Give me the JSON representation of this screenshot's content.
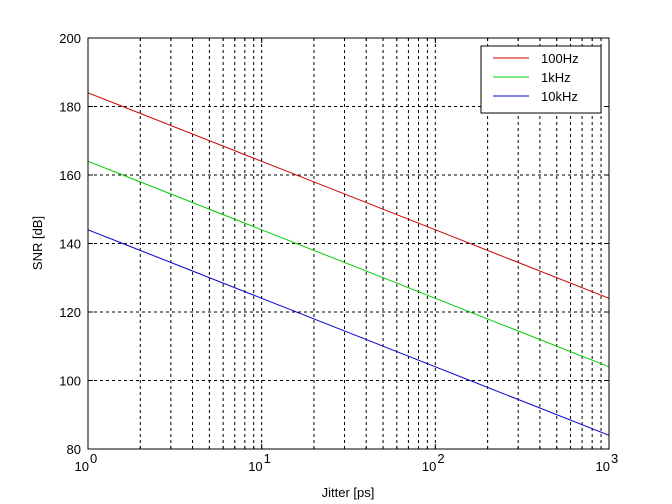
{
  "chart_data": {
    "type": "line",
    "title": "",
    "xlabel": "Jitter [ps]",
    "ylabel": "SNR [dB]",
    "xscale": "log",
    "xlim": [
      1,
      1000
    ],
    "ylim": [
      80,
      200
    ],
    "grid": true,
    "legend_position": "top-right",
    "x_ticks": [
      {
        "base": "10",
        "exp": "0"
      },
      {
        "base": "10",
        "exp": "1"
      },
      {
        "base": "10",
        "exp": "2"
      },
      {
        "base": "10",
        "exp": "3"
      }
    ],
    "y_ticks": [
      "80",
      "100",
      "120",
      "140",
      "160",
      "180",
      "200"
    ],
    "series": [
      {
        "name": "100Hz",
        "color": "#cc0000",
        "x": [
          1,
          10,
          100,
          1000
        ],
        "y": [
          184,
          164,
          144,
          124
        ]
      },
      {
        "name": "1kHz",
        "color": "#00cc00",
        "x": [
          1,
          10,
          100,
          1000
        ],
        "y": [
          164,
          144,
          124,
          104
        ]
      },
      {
        "name": "10kHz",
        "color": "#0000cc",
        "x": [
          1,
          10,
          100,
          1000
        ],
        "y": [
          144,
          124,
          104,
          84
        ]
      }
    ]
  }
}
